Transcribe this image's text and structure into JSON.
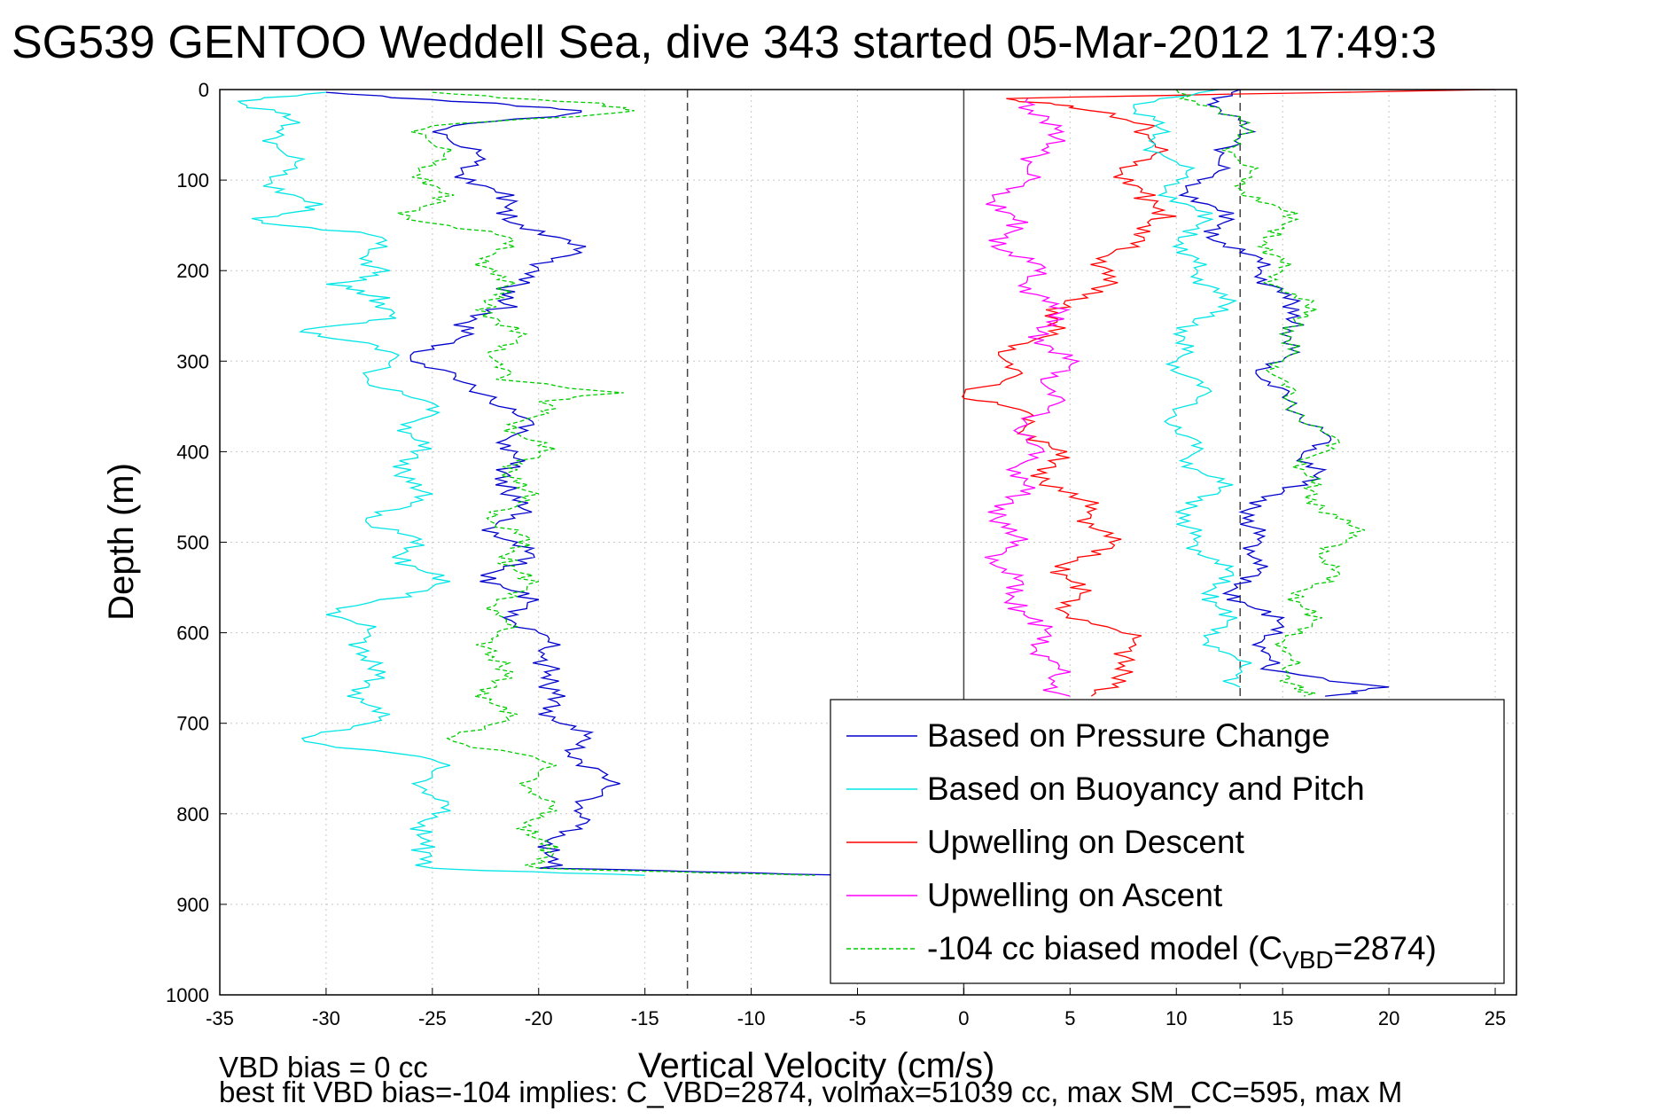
{
  "chart_data": {
    "type": "line",
    "title": "SG539 GENTOO Weddell Sea, dive 343 started 05-Mar-2012 17:49:3",
    "xlabel": "Vertical Velocity (cm/s)",
    "ylabel": "Depth (m)",
    "xlim": [
      -35,
      26
    ],
    "ylim": [
      0,
      1000
    ],
    "y_reversed": true,
    "grid": true,
    "x_ticks": [
      "-35",
      "-30",
      "-25",
      "-20",
      "-15",
      "-10",
      "-5",
      "0",
      "5",
      "10",
      "15",
      "20",
      "25"
    ],
    "y_ticks": [
      "0",
      "100",
      "200",
      "300",
      "400",
      "500",
      "600",
      "700",
      "800",
      "900",
      "1000"
    ],
    "reference_lines": [
      {
        "x": 0,
        "style": "solid"
      },
      {
        "x": -13,
        "style": "dashed"
      },
      {
        "x": 13,
        "style": "dashed"
      }
    ],
    "legend_position": "lower-right",
    "legend_entries": [
      {
        "label": "Based on Pressure Change",
        "color": "#0000cc",
        "dash": "solid"
      },
      {
        "label": "Based on Buoyancy and Pitch",
        "color": "#00e5e5",
        "dash": "solid"
      },
      {
        "label": "Upwelling on Descent",
        "color": "#ff0000",
        "dash": "solid"
      },
      {
        "label": "Upwelling on Ascent",
        "color": "#ff00ff",
        "dash": "solid"
      },
      {
        "label_pre": "-104 cc biased model (C",
        "label_sub": "VBD",
        "label_post": "=2874)",
        "color": "#00cc00",
        "dash": "dashed"
      }
    ],
    "series": [
      {
        "name": "Based on Pressure Change",
        "color": "#0000cc",
        "dash": "solid",
        "depth": [
          3,
          15,
          25,
          40,
          60,
          80,
          100,
          120,
          140,
          160,
          180,
          200,
          220,
          240,
          260,
          280,
          300,
          320,
          340,
          360,
          380,
          400,
          420,
          440,
          460,
          480,
          500,
          520,
          540,
          560,
          580,
          600,
          620,
          640,
          660,
          680,
          700,
          720,
          740,
          760,
          780,
          800,
          820,
          840,
          860,
          868
        ],
        "velocity": [
          -30,
          -22,
          -18,
          -24,
          -24,
          -23,
          -23,
          -22,
          -21,
          -20,
          -18,
          -20,
          -22,
          -21,
          -24,
          -24,
          -26,
          -24,
          -22,
          -21,
          -21,
          -21,
          -22,
          -21,
          -21,
          -22,
          -21,
          -21,
          -22,
          -21,
          -21,
          -20,
          -20,
          -19,
          -20,
          -19,
          -19,
          -18,
          -18,
          -17,
          -17,
          -18,
          -19,
          -19,
          -20,
          -5
        ]
      },
      {
        "name": "Based on Buoyancy and Pitch",
        "color": "#00e5e5",
        "dash": "solid",
        "depth": [
          3,
          15,
          30,
          50,
          70,
          90,
          110,
          130,
          145,
          160,
          180,
          200,
          215,
          230,
          250,
          265,
          280,
          300,
          320,
          340,
          360,
          380,
          400,
          420,
          440,
          460,
          480,
          500,
          520,
          540,
          560,
          580,
          600,
          620,
          640,
          660,
          680,
          700,
          720,
          740,
          760,
          780,
          800,
          820,
          840,
          860,
          868
        ],
        "velocity": [
          -30,
          -34,
          -32,
          -32,
          -32,
          -32,
          -32,
          -31,
          -33,
          -28,
          -28,
          -27,
          -30,
          -27,
          -27,
          -31,
          -28,
          -27,
          -28,
          -26,
          -25,
          -26,
          -26,
          -26,
          -26,
          -26,
          -28,
          -26,
          -26,
          -25,
          -26,
          -30,
          -28,
          -28,
          -28,
          -28,
          -28,
          -28,
          -31,
          -25,
          -25,
          -25,
          -25,
          -25,
          -26,
          -25,
          -15
        ]
      },
      {
        "name": "Upwelling on Descent",
        "color": "#ff0000",
        "dash": "solid",
        "depth": [
          0,
          10,
          20,
          40,
          60,
          80,
          100,
          120,
          140,
          160,
          180,
          200,
          220,
          240,
          260,
          280,
          300,
          320,
          337,
          350,
          370,
          390,
          410,
          430,
          450,
          470,
          490,
          510,
          530,
          550,
          570,
          590,
          610,
          630,
          650,
          670
        ],
        "velocity": [
          25,
          2,
          5,
          9,
          9,
          8,
          8,
          8,
          10,
          8,
          7,
          7,
          6,
          5,
          4,
          3,
          2,
          2,
          0,
          2,
          3,
          4,
          4,
          4,
          5,
          6,
          7,
          6,
          5,
          5,
          5,
          6,
          8,
          8,
          7,
          6
        ]
      },
      {
        "name": "Upwelling on Ascent",
        "color": "#ff00ff",
        "dash": "solid",
        "depth": [
          10,
          30,
          50,
          70,
          90,
          110,
          130,
          150,
          170,
          190,
          210,
          230,
          250,
          270,
          290,
          310,
          330,
          350,
          370,
          390,
          410,
          430,
          450,
          470,
          490,
          510,
          530,
          550,
          570,
          590,
          610,
          630,
          650,
          670
        ],
        "velocity": [
          3,
          4,
          4,
          4,
          3,
          2,
          2,
          2,
          2,
          3,
          3,
          4,
          4,
          4,
          4,
          5,
          4,
          4,
          3,
          3,
          3,
          3,
          2,
          2,
          2,
          2,
          2,
          2,
          3,
          3,
          4,
          4,
          4,
          5
        ]
      },
      {
        "name": "-104 cc biased model",
        "color": "#00cc00",
        "dash": "dashed",
        "depth": [
          3,
          15,
          25,
          40,
          60,
          80,
          100,
          120,
          140,
          160,
          180,
          200,
          220,
          240,
          260,
          280,
          300,
          320,
          335,
          345,
          360,
          380,
          400,
          420,
          440,
          460,
          480,
          500,
          520,
          540,
          560,
          580,
          600,
          620,
          640,
          660,
          680,
          700,
          720,
          740,
          760,
          780,
          800,
          820,
          840,
          860,
          868
        ],
        "velocity": [
          -25,
          -17,
          -16,
          -25,
          -25,
          -25,
          -25,
          -25,
          -26,
          -22,
          -22,
          -22,
          -22,
          -22,
          -22,
          -21,
          -22,
          -22,
          -16,
          -20,
          -20,
          -21,
          -20,
          -21,
          -21,
          -21,
          -22,
          -21,
          -21,
          -21,
          -21,
          -22,
          -22,
          -22,
          -22,
          -22,
          -22,
          -22,
          -24,
          -20,
          -20,
          -20,
          -20,
          -20,
          -20,
          -20,
          -7
        ]
      }
    ],
    "series_right": [
      {
        "name": "Based on Pressure Change (ascent)",
        "color": "#0000cc",
        "dash": "solid",
        "depth": [
          0,
          20,
          40,
          60,
          80,
          100,
          120,
          140,
          160,
          180,
          200,
          220,
          240,
          260,
          280,
          300,
          320,
          340,
          360,
          380,
          400,
          420,
          440,
          460,
          480,
          500,
          520,
          540,
          560,
          580,
          600,
          620,
          640,
          660,
          670
        ],
        "velocity": [
          13,
          12,
          13,
          13,
          12,
          11,
          11,
          12,
          12,
          13,
          14,
          15,
          15,
          16,
          15,
          15,
          14,
          15,
          16,
          17,
          16,
          17,
          15,
          14,
          13,
          14,
          14,
          13,
          13,
          14,
          15,
          14,
          14,
          20,
          17
        ]
      },
      {
        "name": "Based on Buoyancy and Pitch (ascent)",
        "color": "#00e5e5",
        "dash": "solid",
        "depth": [
          0,
          20,
          40,
          60,
          80,
          100,
          120,
          140,
          160,
          180,
          200,
          220,
          240,
          260,
          280,
          300,
          320,
          340,
          360,
          380,
          400,
          420,
          440,
          460,
          480,
          500,
          520,
          540,
          560,
          580,
          600,
          620,
          640,
          660
        ],
        "velocity": [
          12,
          8,
          9,
          9,
          10,
          10,
          10,
          11,
          11,
          10,
          11,
          12,
          12,
          11,
          10,
          10,
          11,
          11,
          10,
          10,
          11,
          11,
          12,
          11,
          10,
          11,
          12,
          12,
          12,
          12,
          12,
          12,
          13,
          13
        ]
      },
      {
        "name": "-104 cc biased model (ascent)",
        "color": "#00cc00",
        "dash": "dashed",
        "depth": [
          0,
          20,
          40,
          60,
          80,
          100,
          120,
          140,
          160,
          180,
          200,
          220,
          240,
          260,
          280,
          300,
          320,
          340,
          360,
          380,
          400,
          420,
          440,
          460,
          480,
          500,
          520,
          540,
          560,
          580,
          600,
          620,
          640,
          660,
          670
        ],
        "velocity": [
          10,
          12,
          13,
          13,
          13,
          13,
          14,
          15,
          15,
          14,
          15,
          15,
          16,
          16,
          15,
          15,
          15,
          15,
          16,
          17,
          17,
          16,
          16,
          17,
          18,
          18,
          17,
          17,
          16,
          16,
          16,
          15,
          15,
          16,
          16
        ]
      }
    ],
    "footer": {
      "line1": "VBD bias = 0 cc",
      "line2": "best fit VBD bias=-104 implies: C_VBD=2874, volmax=51039 cc, max SM_CC=595, max M"
    }
  }
}
